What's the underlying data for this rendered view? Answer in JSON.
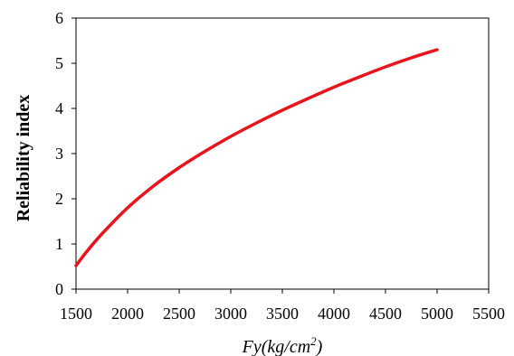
{
  "chart_data": {
    "type": "line",
    "title": "",
    "xlabel_main": "Fy(kg/cm",
    "xlabel_sup": "2",
    "xlabel_tail": ")",
    "ylabel": "Reliability index",
    "xlim": [
      1500,
      5500
    ],
    "ylim": [
      0,
      6
    ],
    "xticks": [
      "1500",
      "2000",
      "2500",
      "3000",
      "3500",
      "4000",
      "4500",
      "5000",
      "5500"
    ],
    "yticks": [
      "0",
      "1",
      "2",
      "3",
      "4",
      "5",
      "6"
    ],
    "grid": false,
    "legend": "none",
    "series": [
      {
        "color": "#e8141c",
        "x": [
          1500,
          1600,
          1750,
          2000,
          2250,
          2500,
          2750,
          3000,
          3250,
          3500,
          3750,
          4000,
          4250,
          4500,
          4750,
          5000
        ],
        "y": [
          0.52,
          0.82,
          1.22,
          1.8,
          2.28,
          2.69,
          3.05,
          3.38,
          3.68,
          3.96,
          4.22,
          4.47,
          4.7,
          4.92,
          5.12,
          5.3
        ]
      }
    ]
  }
}
